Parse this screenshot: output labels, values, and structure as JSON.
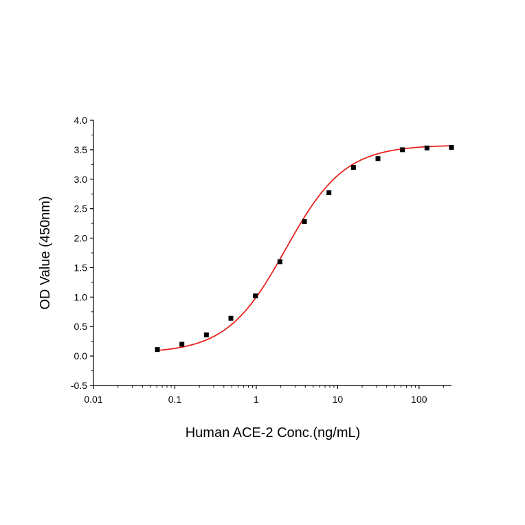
{
  "chart_data": {
    "type": "scatter",
    "title": "",
    "xlabel": "Human ACE-2 Conc.(ng/mL)",
    "ylabel": "OD Value (450nm)",
    "xscale": "log",
    "xlim": [
      0.01,
      250
    ],
    "ylim": [
      -0.5,
      4.0
    ],
    "grid": false,
    "legend": "none",
    "x_ticks": [
      0.01,
      0.1,
      1,
      10,
      100
    ],
    "x_tick_labels": [
      "0.01",
      "0.1",
      "1",
      "10",
      "100"
    ],
    "y_ticks": [
      -0.5,
      0.0,
      0.5,
      1.0,
      1.5,
      2.0,
      2.5,
      3.0,
      3.5,
      4.0
    ],
    "y_tick_labels": [
      "-0.5",
      "0.0",
      "0.5",
      "1.0",
      "1.5",
      "2.0",
      "2.5",
      "3.0",
      "3.5",
      "4.0"
    ],
    "series": [
      {
        "x": [
          0.061,
          0.122,
          0.244,
          0.488,
          0.977,
          1.953,
          3.906,
          7.813,
          15.625,
          31.25,
          62.5,
          125,
          250
        ],
        "y": [
          0.11,
          0.2,
          0.36,
          0.64,
          1.02,
          1.6,
          2.28,
          2.77,
          3.2,
          3.35,
          3.5,
          3.53,
          3.54
        ],
        "marker_color": "#000000"
      }
    ],
    "fit_curve": {
      "model": "4PL",
      "bottom": 0.05,
      "top": 3.58,
      "ec50": 2.3,
      "hill": 1.2,
      "color": "#e8231e"
    }
  }
}
